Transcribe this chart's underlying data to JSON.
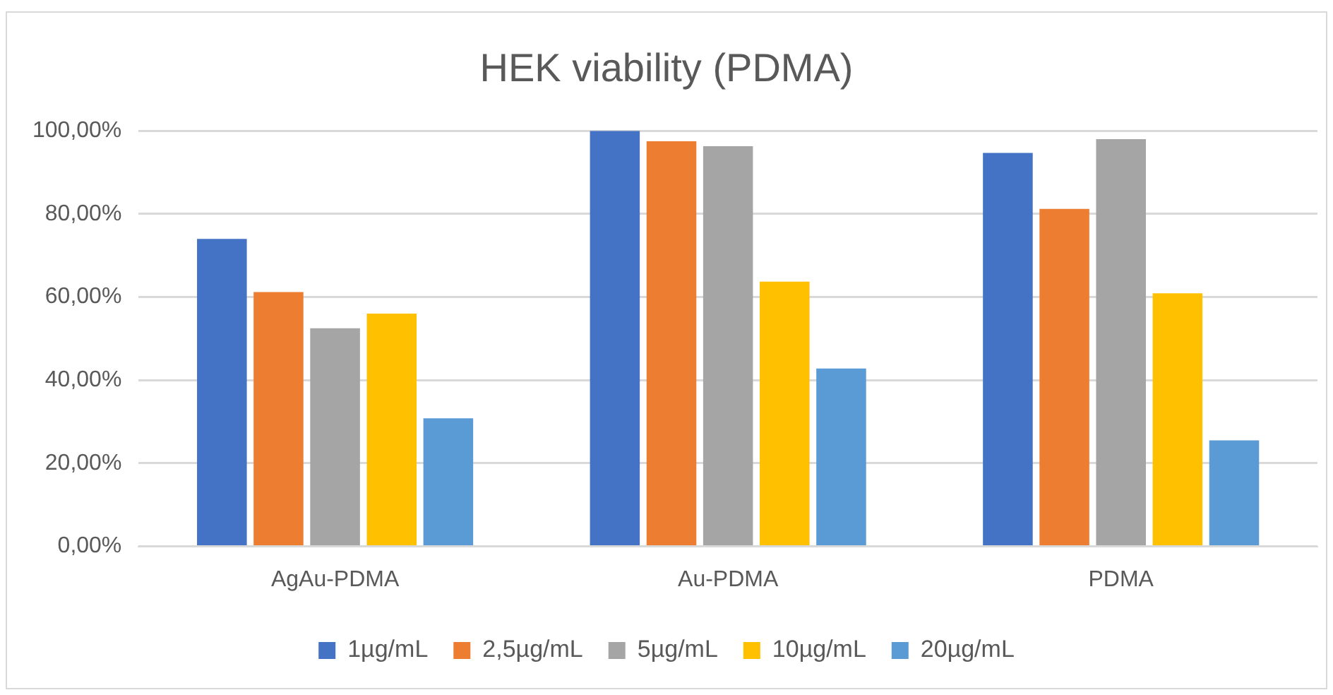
{
  "chart_data": {
    "type": "bar",
    "title": "HEK viability (PDMA)",
    "categories": [
      "AgAu-PDMA",
      "Au-PDMA",
      "PDMA"
    ],
    "series": [
      {
        "name": "1µg/mL",
        "color": "#4472c4",
        "values": [
          74.0,
          100,
          94.7
        ]
      },
      {
        "name": "2,5µg/mL",
        "color": "#ed7d31",
        "values": [
          61.2,
          97.5,
          81.2
        ]
      },
      {
        "name": "5µg/mL",
        "color": "#a5a5a5",
        "values": [
          52.5,
          96.3,
          98.0
        ]
      },
      {
        "name": "10µg/mL",
        "color": "#ffc000",
        "values": [
          56.0,
          63.7,
          60.9
        ]
      },
      {
        "name": "20µg/mL",
        "color": "#5b9bd5",
        "values": [
          30.8,
          42.8,
          25.5
        ]
      }
    ],
    "ylim": [
      0,
      100
    ],
    "yticks": [
      {
        "value": 0,
        "label": "0,00%"
      },
      {
        "value": 20,
        "label": "20,00%"
      },
      {
        "value": 40,
        "label": "40,00%"
      },
      {
        "value": 60,
        "label": "60,00%"
      },
      {
        "value": 80,
        "label": "80,00%"
      },
      {
        "value": 100,
        "label": "100,00%"
      }
    ],
    "grid": "y",
    "legend": "bottom"
  }
}
